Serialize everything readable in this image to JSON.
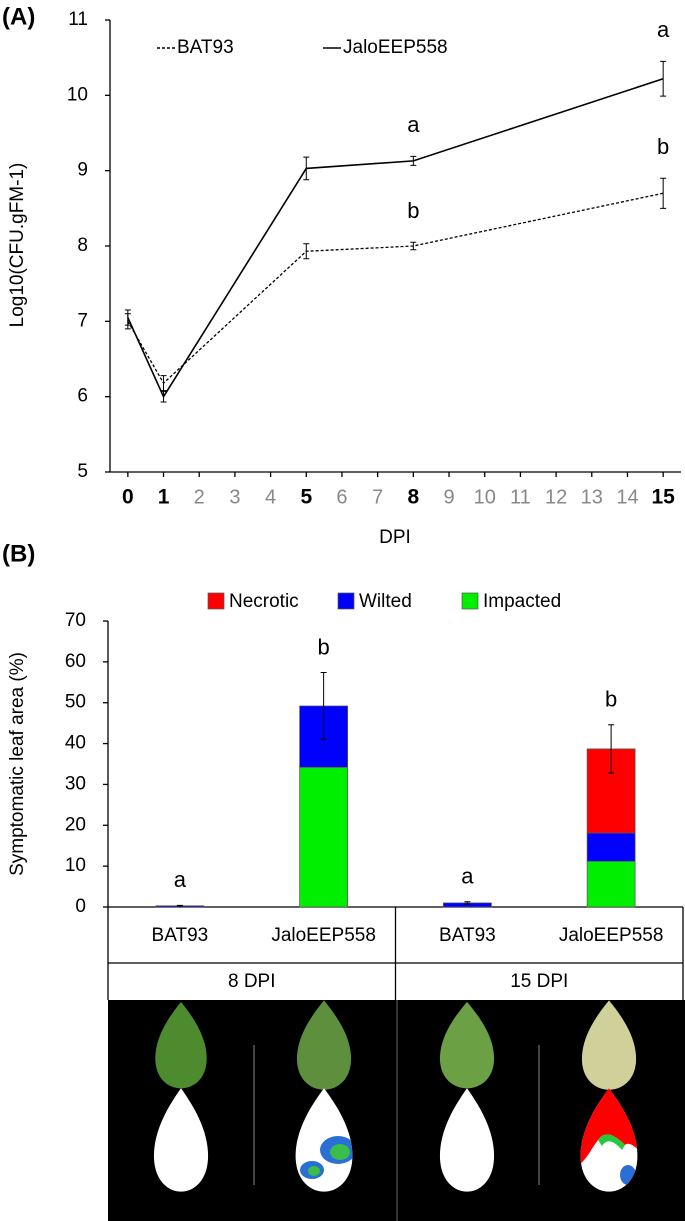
{
  "chart_data": [
    {
      "type": "line",
      "panel_label": "(A)",
      "x_label": "DPI",
      "y_label": "Log10(CFU.gFM-1)",
      "x": [
        0,
        1,
        5,
        8,
        15
      ],
      "xlim": [
        -0.5,
        15.5
      ],
      "xticks": [
        0,
        1,
        2,
        3,
        4,
        5,
        6,
        7,
        8,
        9,
        10,
        11,
        12,
        13,
        14,
        15
      ],
      "ylim": [
        5,
        11
      ],
      "yticks": [
        5,
        6,
        7,
        8,
        9,
        10,
        11
      ],
      "grid": false,
      "legend": "top-left",
      "series": [
        {
          "name": "BAT93",
          "color": "#000000",
          "style": "dashed",
          "values": [
            7.0,
            6.18,
            7.93,
            8.0,
            8.7
          ],
          "errors": [
            0.1,
            0.1,
            0.1,
            0.05,
            0.2
          ],
          "significance": [
            null,
            null,
            null,
            "b",
            "b"
          ]
        },
        {
          "name": "JaloEEP558",
          "color": "#000000",
          "style": "solid",
          "values": [
            7.05,
            6.0,
            9.03,
            9.13,
            10.22
          ],
          "errors": [
            0.1,
            0.07,
            0.15,
            0.06,
            0.23
          ],
          "significance": [
            null,
            null,
            null,
            "a",
            "a"
          ]
        }
      ]
    },
    {
      "type": "stacked_bar",
      "panel_label": "(B)",
      "y_label": "Symptomatic leaf area (%)",
      "categories": [
        "BAT93",
        "JaloEEP558",
        "BAT93",
        "JaloEEP558"
      ],
      "groups": [
        "8 DPI",
        "15 DPI"
      ],
      "ylim": [
        0,
        70
      ],
      "yticks": [
        0,
        10,
        20,
        30,
        40,
        50,
        60,
        70
      ],
      "grid": false,
      "legend": "top",
      "series": [
        {
          "name": "Necrotic",
          "color": "#ff0000",
          "values": [
            0,
            0,
            0,
            20.6
          ]
        },
        {
          "name": "Wilted",
          "color": "#0000ff",
          "values": [
            0.3,
            15,
            1,
            6.9
          ]
        },
        {
          "name": "Impacted",
          "color": "#00ee00",
          "values": [
            0,
            34.2,
            0,
            11.2
          ]
        }
      ],
      "errors": [
        0.1,
        8.2,
        0.3,
        5.9
      ],
      "significance": [
        "a",
        "b",
        "a",
        "b"
      ]
    }
  ]
}
